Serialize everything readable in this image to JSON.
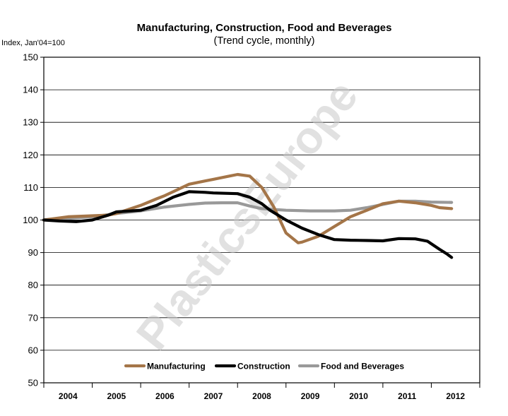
{
  "chart_data": {
    "type": "line",
    "title": "Manufacturing, Construction, Food and Beverages",
    "subtitle": "(Trend cycle, monthly)",
    "ylabel": "Index, Jan'04=100",
    "xlabel": "",
    "ylim": [
      50,
      150
    ],
    "y_ticks": [
      50,
      60,
      70,
      80,
      90,
      100,
      110,
      120,
      130,
      140,
      150
    ],
    "year_labels": [
      "2004",
      "2005",
      "2006",
      "2007",
      "2008",
      "2009",
      "2010",
      "2011",
      "2012"
    ],
    "x_range": [
      2003.5,
      2012.5
    ],
    "grid": true,
    "legend_position": "bottom",
    "watermark": "PlasticsEurope",
    "series": [
      {
        "name": "Manufacturing",
        "color": "#a47548",
        "points": [
          [
            2003.5,
            100
          ],
          [
            2003.75,
            100.5
          ],
          [
            2004.0,
            101
          ],
          [
            2004.5,
            101.3
          ],
          [
            2004.83,
            101.5
          ],
          [
            2005.0,
            102
          ],
          [
            2005.5,
            104.5
          ],
          [
            2005.83,
            106.5
          ],
          [
            2006.0,
            107.5
          ],
          [
            2006.5,
            111
          ],
          [
            2006.83,
            112
          ],
          [
            2007.0,
            112.5
          ],
          [
            2007.33,
            113.5
          ],
          [
            2007.5,
            114
          ],
          [
            2007.75,
            113.5
          ],
          [
            2008.0,
            110
          ],
          [
            2008.25,
            104
          ],
          [
            2008.5,
            96
          ],
          [
            2008.75,
            93
          ],
          [
            2008.83,
            93.2
          ],
          [
            2009.17,
            95
          ],
          [
            2009.5,
            98
          ],
          [
            2009.83,
            101
          ],
          [
            2010.17,
            103
          ],
          [
            2010.5,
            105
          ],
          [
            2010.83,
            105.8
          ],
          [
            2011.17,
            105.3
          ],
          [
            2011.5,
            104.5
          ],
          [
            2011.67,
            103.8
          ],
          [
            2011.92,
            103.5
          ]
        ]
      },
      {
        "name": "Construction",
        "color": "#000000",
        "points": [
          [
            2003.5,
            100
          ],
          [
            2003.83,
            99.7
          ],
          [
            2004.17,
            99.5
          ],
          [
            2004.5,
            100
          ],
          [
            2004.83,
            101.5
          ],
          [
            2005.0,
            102.5
          ],
          [
            2005.5,
            103
          ],
          [
            2005.83,
            104.5
          ],
          [
            2006.17,
            107
          ],
          [
            2006.5,
            108.7
          ],
          [
            2006.83,
            108.5
          ],
          [
            2007.0,
            108.3
          ],
          [
            2007.5,
            108.1
          ],
          [
            2007.75,
            107
          ],
          [
            2008.0,
            105
          ],
          [
            2008.17,
            103
          ],
          [
            2008.5,
            100
          ],
          [
            2008.83,
            97.5
          ],
          [
            2009.17,
            95.5
          ],
          [
            2009.5,
            94
          ],
          [
            2009.83,
            93.8
          ],
          [
            2010.17,
            93.7
          ],
          [
            2010.5,
            93.6
          ],
          [
            2010.83,
            94.3
          ],
          [
            2011.17,
            94.2
          ],
          [
            2011.42,
            93.5
          ],
          [
            2011.67,
            91
          ],
          [
            2011.83,
            89.5
          ],
          [
            2011.92,
            88.5
          ]
        ]
      },
      {
        "name": "Food and Beverages",
        "color": "#999999",
        "points": [
          [
            2003.5,
            100
          ],
          [
            2004.0,
            100.5
          ],
          [
            2004.5,
            101
          ],
          [
            2005.0,
            102
          ],
          [
            2005.5,
            102.8
          ],
          [
            2006.0,
            104
          ],
          [
            2006.5,
            104.8
          ],
          [
            2006.83,
            105.2
          ],
          [
            2007.17,
            105.3
          ],
          [
            2007.5,
            105.3
          ],
          [
            2007.75,
            104.3
          ],
          [
            2008.0,
            103.5
          ],
          [
            2008.5,
            103
          ],
          [
            2009.0,
            102.8
          ],
          [
            2009.5,
            102.8
          ],
          [
            2009.83,
            103
          ],
          [
            2010.17,
            103.8
          ],
          [
            2010.5,
            104.8
          ],
          [
            2010.83,
            105.8
          ],
          [
            2011.17,
            105.8
          ],
          [
            2011.5,
            105.5
          ],
          [
            2011.92,
            105.4
          ]
        ]
      }
    ]
  }
}
